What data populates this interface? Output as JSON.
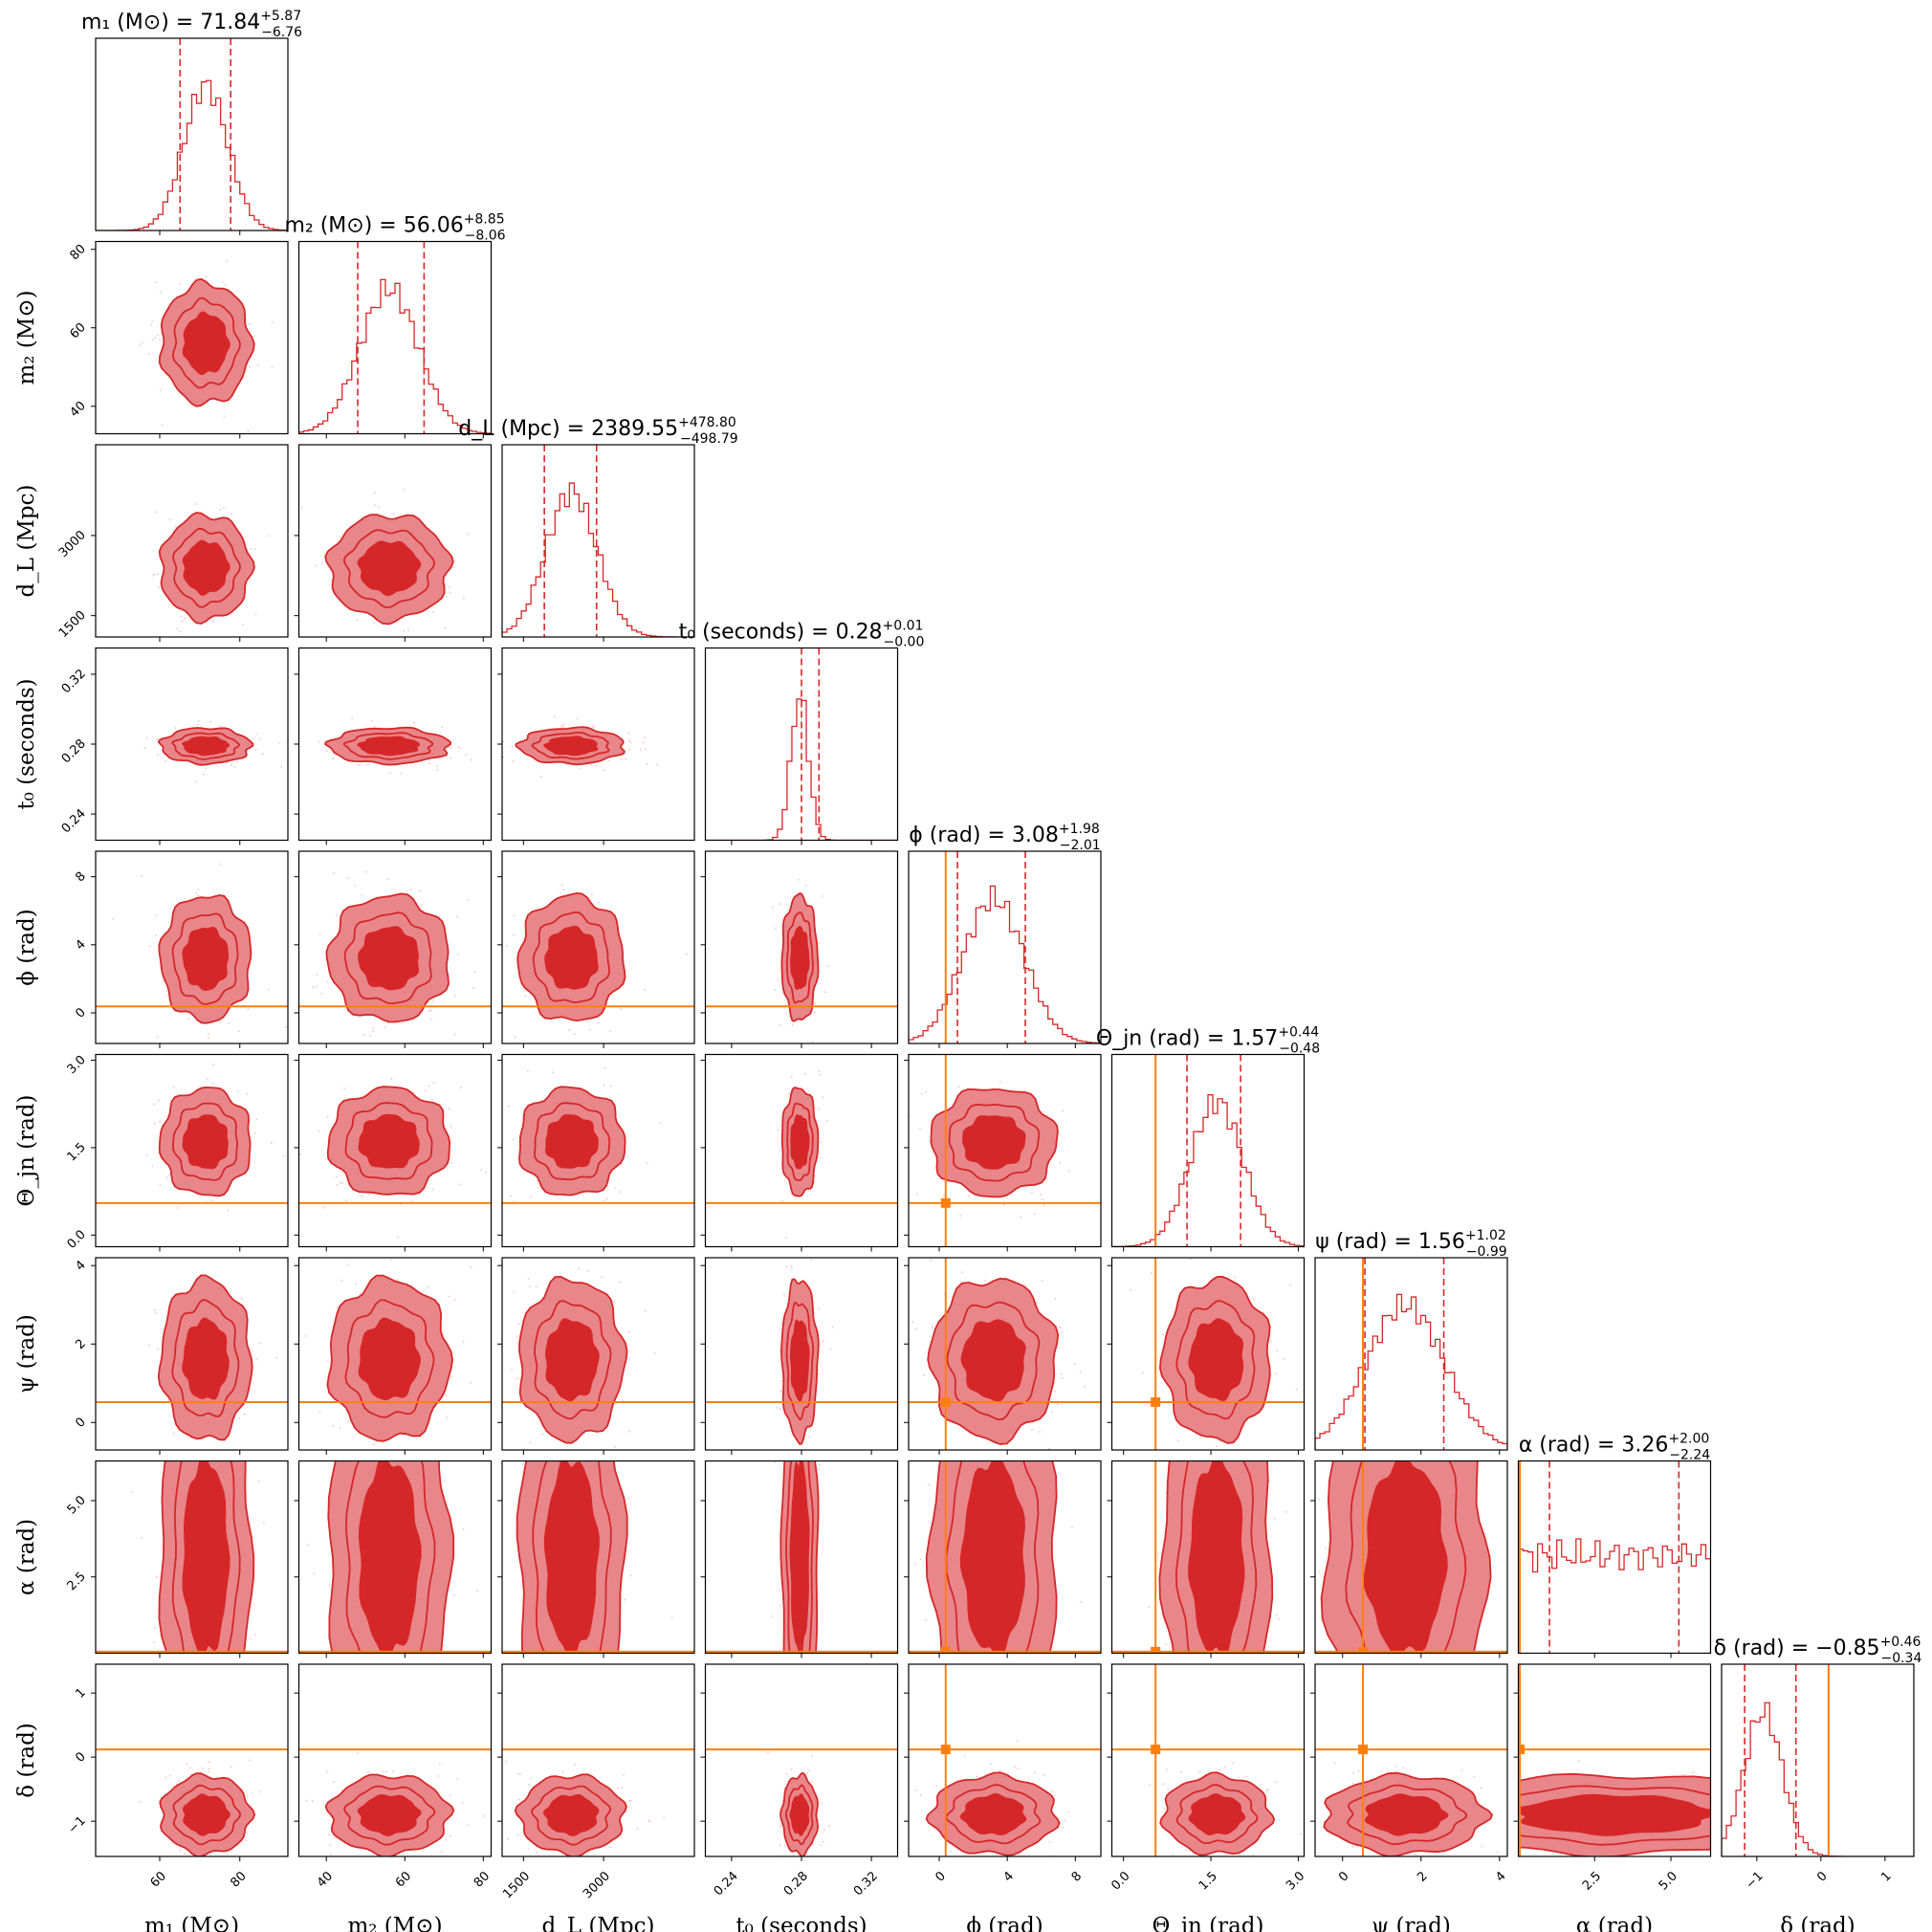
{
  "chart_data": {
    "type": "corner",
    "colors": {
      "posterior": "#d62728",
      "contour_inner": "#d62728",
      "contour_outer": "#e8868a",
      "truth": "#ff7f0e",
      "frame": "#000000"
    },
    "parameters": [
      {
        "id": "m1",
        "axis_label": "m₁ (M⊙)",
        "title": "m₁ (M⊙) = 71.84",
        "median": 71.84,
        "err_plus": "+5.87",
        "err_minus": "−6.76",
        "range": [
          44,
          92
        ],
        "ticks": [
          {
            "value": 60,
            "label": "60"
          },
          {
            "value": 80,
            "label": "80"
          }
        ],
        "truth": null,
        "mean": 71.5,
        "sd": 5.5,
        "dist": "normal"
      },
      {
        "id": "m2",
        "axis_label": "m₂ (M⊙)",
        "title": "m₂ (M⊙) = 56.06",
        "median": 56.06,
        "err_plus": "+8.85",
        "err_minus": "−8.06",
        "range": [
          33,
          82
        ],
        "ticks": [
          {
            "value": 40,
            "label": "40"
          },
          {
            "value": 60,
            "label": "60"
          },
          {
            "value": 80,
            "label": "80"
          }
        ],
        "truth": null,
        "mean": 56,
        "sd": 7.5,
        "dist": "normal"
      },
      {
        "id": "dL",
        "axis_label": "d_L (Mpc)",
        "title": "d_L (Mpc) = 2389.55",
        "median": 2389.55,
        "err_plus": "+478.80",
        "err_minus": "−498.79",
        "range": [
          1100,
          4700
        ],
        "ticks": [
          {
            "value": 1500,
            "label": "1500"
          },
          {
            "value": 3000,
            "label": "3000"
          }
        ],
        "truth": null,
        "mean": 2400,
        "sd": 480,
        "dist": "normal"
      },
      {
        "id": "t0",
        "axis_label": "t₀ (seconds)",
        "title": "t₀ (seconds) = 0.28",
        "median": 0.28,
        "err_plus": "+0.01",
        "err_minus": "−0.00",
        "range": [
          0.225,
          0.335
        ],
        "ticks": [
          {
            "value": 0.24,
            "label": "0.24"
          },
          {
            "value": 0.28,
            "label": "0.28"
          },
          {
            "value": 0.32,
            "label": "0.32"
          }
        ],
        "truth": null,
        "mean": 0.279,
        "sd": 0.005,
        "dist": "normal"
      },
      {
        "id": "phi",
        "axis_label": "ϕ (rad)",
        "title": "ϕ (rad) = 3.08",
        "median": 3.08,
        "err_plus": "+1.98",
        "err_minus": "−2.01",
        "range": [
          -1.8,
          9.5
        ],
        "ticks": [
          {
            "value": 0,
            "label": "0"
          },
          {
            "value": 4,
            "label": "4"
          },
          {
            "value": 8,
            "label": "8"
          }
        ],
        "truth": 0.38,
        "mean": 3.2,
        "sd": 1.8,
        "dist": "normal"
      },
      {
        "id": "theta",
        "axis_label": "Θ_jn (rad)",
        "title": "Θ_jn (rad) = 1.57",
        "median": 1.57,
        "err_plus": "+0.44",
        "err_minus": "−0.48",
        "range": [
          -0.2,
          3.1
        ],
        "ticks": [
          {
            "value": 0,
            "label": "0.0"
          },
          {
            "value": 1.5,
            "label": "1.5"
          },
          {
            "value": 3,
            "label": "3.0"
          }
        ],
        "truth": 0.55,
        "mean": 1.6,
        "sd": 0.45,
        "dist": "normal"
      },
      {
        "id": "psi",
        "axis_label": "ψ (rad)",
        "title": "ψ (rad) = 1.56",
        "median": 1.56,
        "err_plus": "+1.02",
        "err_minus": "−0.99",
        "range": [
          -0.7,
          4.2
        ],
        "ticks": [
          {
            "value": 0,
            "label": "0"
          },
          {
            "value": 2,
            "label": "2"
          },
          {
            "value": 4,
            "label": "4"
          }
        ],
        "truth": 0.52,
        "mean": 1.6,
        "sd": 1.0,
        "dist": "normal"
      },
      {
        "id": "alpha",
        "axis_label": "α (rad)",
        "title": "α (rad) = 3.26",
        "median": 3.26,
        "err_plus": "+2.00",
        "err_minus": "−2.24",
        "range": [
          0,
          6.3
        ],
        "ticks": [
          {
            "value": 2.5,
            "label": "2.5"
          },
          {
            "value": 5,
            "label": "5.0"
          }
        ],
        "truth": 0.05,
        "mean": 3.15,
        "sd": 1.8,
        "dist": "uniform"
      },
      {
        "id": "delta",
        "axis_label": "δ (rad)",
        "title": "δ (rad) = −0.85",
        "median": -0.85,
        "err_plus": "+0.46",
        "err_minus": "−0.34",
        "range": [
          -1.55,
          1.45
        ],
        "ticks": [
          {
            "value": -1,
            "label": "−1"
          },
          {
            "value": 0,
            "label": "0"
          },
          {
            "value": 1,
            "label": "1"
          }
        ],
        "truth": 0.12,
        "mean": -0.9,
        "sd": 0.3,
        "dist": "normal"
      }
    ],
    "quantiles": [
      0.16,
      0.5,
      0.84
    ],
    "marginal_bins": 40
  }
}
